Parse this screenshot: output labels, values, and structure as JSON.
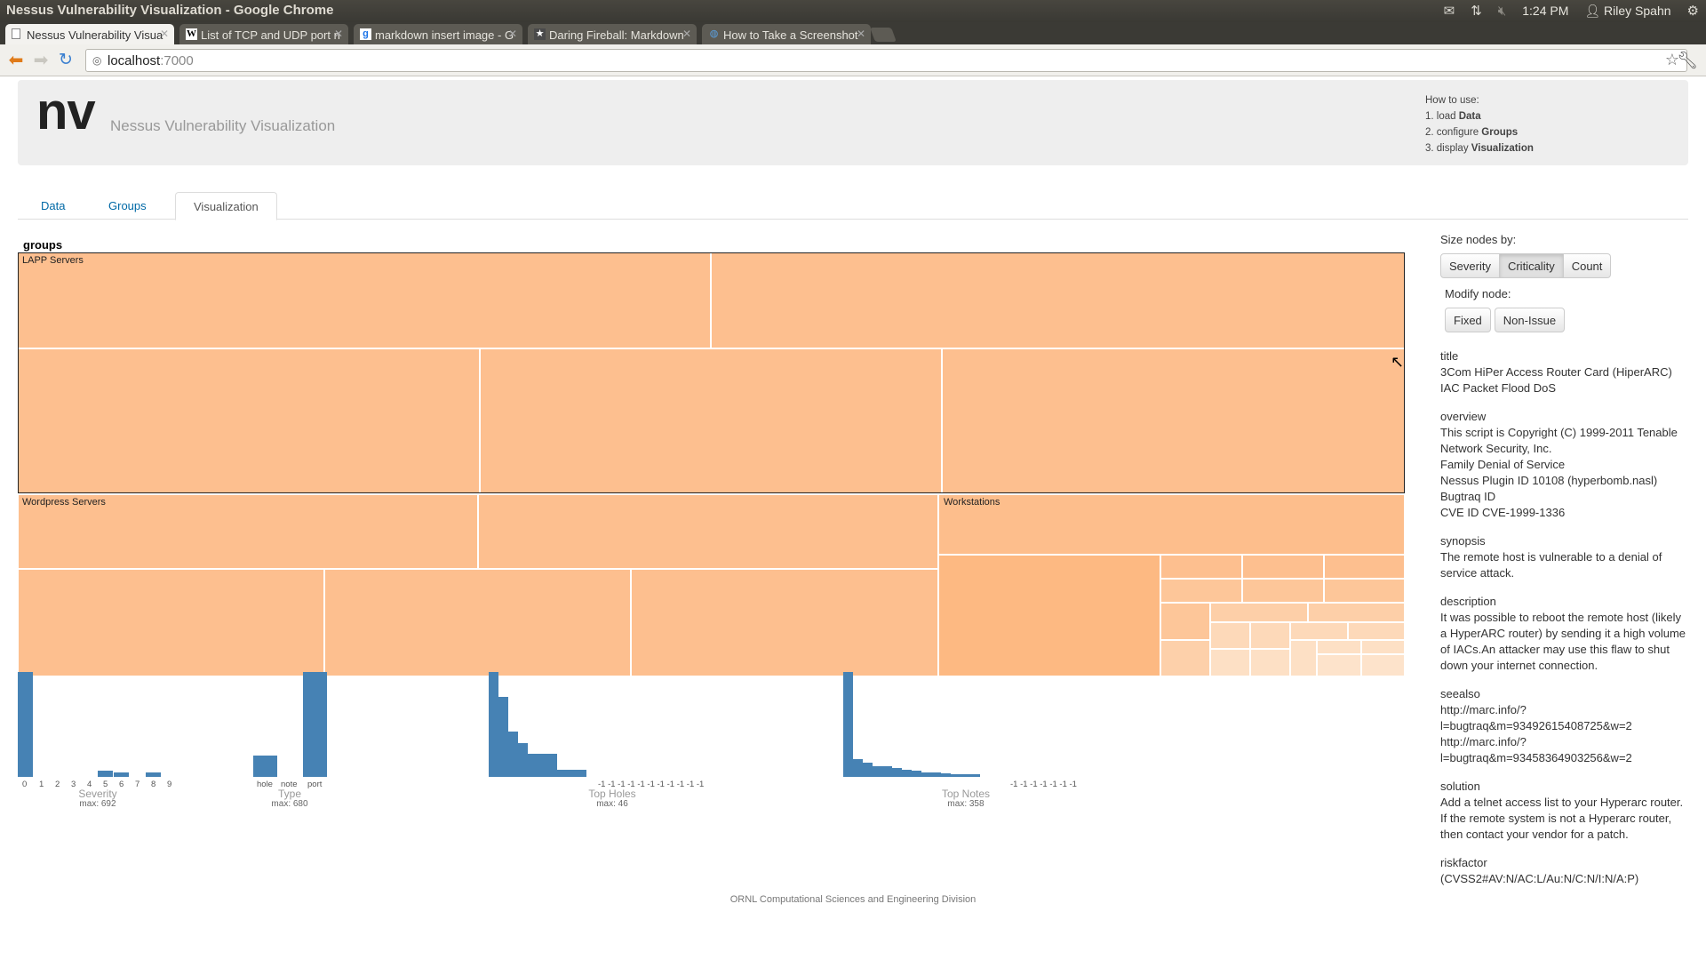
{
  "os": {
    "window_title": "Nessus Vulnerability Visualization - Google Chrome",
    "time": "1:24 PM",
    "user": "Riley Spahn"
  },
  "browser": {
    "tabs": [
      {
        "label": "Nessus Vulnerability Visua",
        "icon": "page-icon",
        "active": true
      },
      {
        "label": "List of TCP and UDP port n",
        "icon": "wikipedia-icon",
        "active": false
      },
      {
        "label": "markdown insert image - G",
        "icon": "google-icon",
        "active": false
      },
      {
        "label": "Daring Fireball: Markdown",
        "icon": "star-site-icon",
        "active": false
      },
      {
        "label": "How to Take a Screenshot",
        "icon": "globe-icon",
        "active": false
      }
    ],
    "url_host": "localhost",
    "url_port": ":7000"
  },
  "header": {
    "brand": "nv",
    "subtitle": "Nessus Vulnerability Visualization",
    "howto_title": "How to use:",
    "howto_steps": [
      {
        "prefix": "1. load ",
        "bold": "Data"
      },
      {
        "prefix": "2. configure ",
        "bold": "Groups"
      },
      {
        "prefix": "3. display ",
        "bold": "Visualization"
      }
    ]
  },
  "nav": {
    "tabs": [
      "Data",
      "Groups",
      "Visualization"
    ],
    "active": "Visualization"
  },
  "treemap": {
    "root_label": "groups",
    "groups": [
      "LAPP Servers",
      "Wordpress Servers",
      "Workstations"
    ],
    "colors": {
      "base": "#fdbf8f",
      "dark": "#fdb982",
      "light": "#fde0c5",
      "medium": "#fdd0aa"
    }
  },
  "charts": {
    "severity": {
      "title": "Severity",
      "max_label": "max: 692",
      "ticks": [
        "0",
        "1",
        "2",
        "3",
        "4",
        "5",
        "6",
        "7",
        "8",
        "9"
      ]
    },
    "type": {
      "title": "Type",
      "max_label": "max: 680",
      "ticks": [
        "hole",
        "note",
        "port"
      ]
    },
    "top_holes": {
      "title": "Top Holes",
      "max_label": "max: 46",
      "minus_ticks": "-1  -1  -1  -1  -1  -1  -1  -1  -1  -1  -1"
    },
    "top_notes": {
      "title": "Top Notes",
      "max_label": "max: 358",
      "minus_ticks": "-1  -1  -1  -1  -1  -1  -1"
    }
  },
  "chart_data": [
    {
      "type": "bar",
      "title": "Severity",
      "categories": [
        "0",
        "1",
        "2",
        "3",
        "4",
        "5",
        "6",
        "7",
        "8",
        "9"
      ],
      "values": [
        692,
        0,
        0,
        0,
        0,
        40,
        32,
        0,
        32,
        0
      ],
      "ylim": [
        0,
        692
      ]
    },
    {
      "type": "bar",
      "title": "Type",
      "categories": [
        "hole",
        "note",
        "port"
      ],
      "values": [
        140,
        0,
        680
      ],
      "ylim": [
        0,
        680
      ]
    },
    {
      "type": "bar",
      "title": "Top Holes",
      "values": [
        46,
        35,
        20,
        15,
        10,
        10,
        10,
        3,
        3,
        3
      ],
      "ylim": [
        0,
        46
      ]
    },
    {
      "type": "bar",
      "title": "Top Notes",
      "values": [
        358,
        60,
        50,
        35,
        35,
        30,
        25,
        20,
        15,
        15,
        12,
        10,
        10,
        8
      ],
      "ylim": [
        0,
        358
      ]
    }
  ],
  "panel": {
    "size_label": "Size nodes by:",
    "size_buttons": [
      "Severity",
      "Criticality",
      "Count"
    ],
    "size_active": "Criticality",
    "modify_label": "Modify node:",
    "modify_buttons": [
      "Fixed",
      "Non-Issue"
    ],
    "fields": [
      {
        "name": "title",
        "value": "3Com HiPer Access Router Card (HiperARC)\nIAC Packet Flood DoS"
      },
      {
        "name": "overview",
        "value": "This script is Copyright (C) 1999-2011 Tenable\nNetwork Security, Inc.\nFamily Denial of Service\nNessus Plugin ID 10108 (hyperbomb.nasl)\nBugtraq ID\nCVE ID CVE-1999-1336"
      },
      {
        "name": "synopsis",
        "value": "The remote host is vulnerable to a denial of\nservice attack."
      },
      {
        "name": "description",
        "value": "It was possible to reboot the remote host (likely\na HyperARC router) by sending it a high volume\nof IACs.An attacker may use this flaw to shut\ndown your internet connection."
      },
      {
        "name": "seealso",
        "value": "http://marc.info/?\nl=bugtraq&m=93492615408725&w=2\nhttp://marc.info/?\nl=bugtraq&m=93458364903256&w=2"
      },
      {
        "name": "solution",
        "value": "Add a telnet access list to your Hyperarc router.\nIf the remote system is not a Hyperarc router,\nthen contact your vendor for a patch."
      },
      {
        "name": "riskfactor",
        "value": "(CVSS2#AV:N/AC:L/Au:N/C:N/I:N/A:P)"
      }
    ]
  },
  "footer": "ORNL Computational Sciences and Engineering Division"
}
